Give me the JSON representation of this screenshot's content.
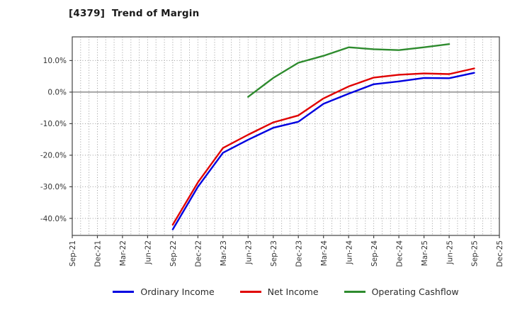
{
  "header": {
    "title": "[4379]  Trend of Margin"
  },
  "chart_data": {
    "type": "line",
    "title": "[4379] Trend of Margin",
    "categories": [
      "Sep-21",
      "Dec-21",
      "Mar-22",
      "Jun-22",
      "Sep-22",
      "Dec-22",
      "Mar-23",
      "Jun-23",
      "Sep-23",
      "Dec-23",
      "Mar-24",
      "Jun-24",
      "Sep-24",
      "Dec-24",
      "Mar-25",
      "Jun-25",
      "Sep-25",
      "Dec-25"
    ],
    "y_ticks": [
      {
        "value": 10,
        "label": "10.0%"
      },
      {
        "value": 0,
        "label": "0.0%"
      },
      {
        "value": -10,
        "label": "-10.0%"
      },
      {
        "value": -20,
        "label": "-20.0%"
      },
      {
        "value": -30,
        "label": "-30.0%"
      },
      {
        "value": -40,
        "label": "-40.0%"
      }
    ],
    "ylim": [
      -45.4,
      17.5
    ],
    "ylabel": "",
    "xlabel": "",
    "grid": {
      "horizontal": "dotted",
      "vertical": "dotted monthly minor lines",
      "zero_line": "solid"
    },
    "legend_position": "bottom-center",
    "series": [
      {
        "name": "Ordinary Income",
        "color": "#0000e0",
        "values": [
          null,
          null,
          null,
          null,
          -43.5,
          -30.0,
          -19.2,
          -15.1,
          -11.3,
          -9.4,
          -3.7,
          -0.5,
          2.5,
          3.4,
          4.5,
          4.4,
          6.1,
          null
        ]
      },
      {
        "name": "Net Income",
        "color": "#e00000",
        "values": [
          null,
          null,
          null,
          null,
          -42.0,
          -28.6,
          -17.7,
          -13.5,
          -9.6,
          -7.4,
          -2.0,
          1.8,
          4.6,
          5.5,
          5.9,
          5.7,
          7.5,
          null
        ]
      },
      {
        "name": "Operating Cashflow",
        "color": "#2e8b2e",
        "values": [
          null,
          null,
          null,
          null,
          null,
          null,
          null,
          -1.5,
          4.5,
          9.3,
          11.5,
          14.2,
          13.6,
          13.3,
          14.2,
          15.2,
          null,
          null
        ]
      }
    ],
    "frame_color": "#444444",
    "grid_color": "#9a9a9a",
    "tick_label_color": "#333333"
  }
}
